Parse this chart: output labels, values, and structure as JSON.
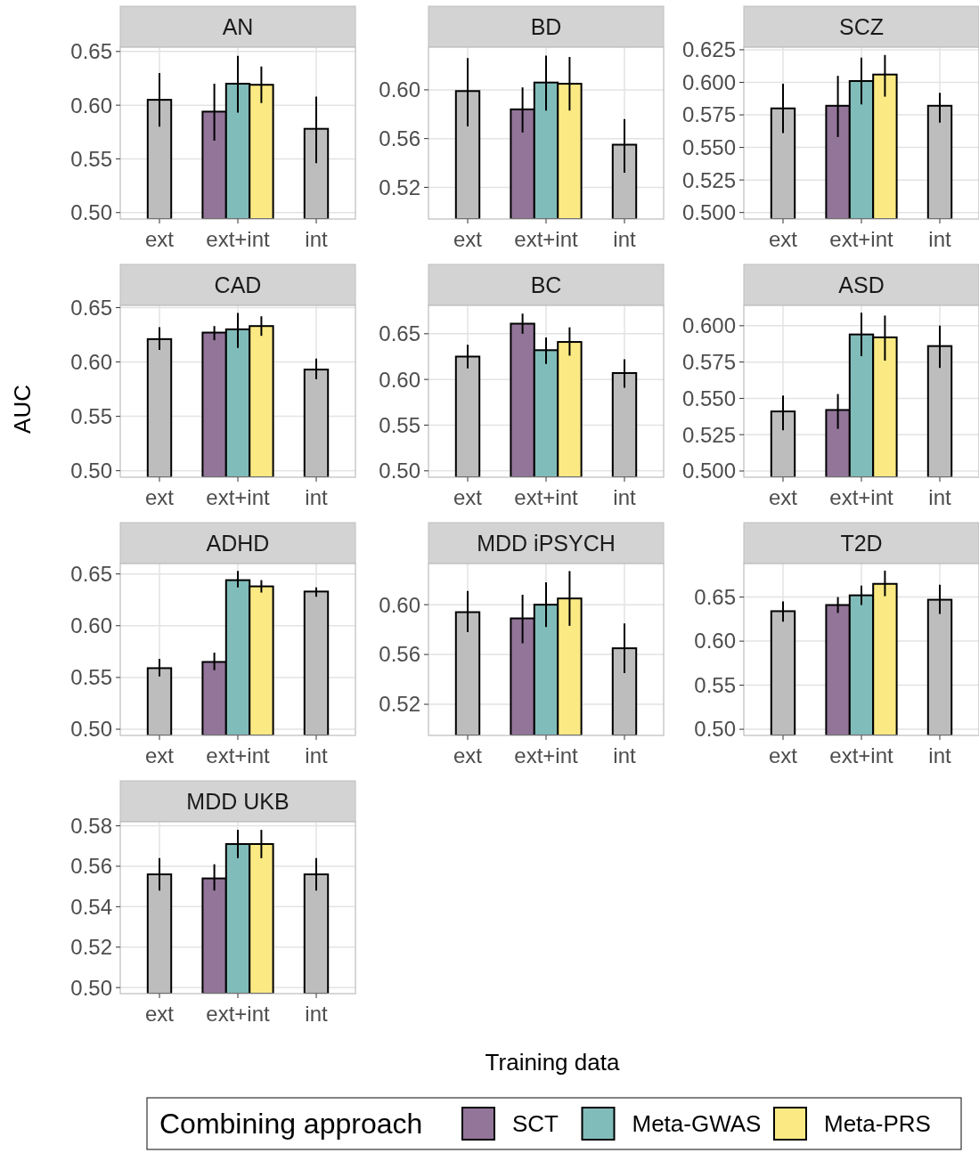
{
  "chart_data": [
    {
      "type": "bar",
      "title": "AN",
      "xlabel": "Training data",
      "legend_title": "Combining approach",
      "legend": "bottom",
      "grid": true,
      "categories": [
        "ext",
        "ext+int",
        "int"
      ],
      "ylim": [
        0.494,
        0.654
      ],
      "yticks": [
        {
          "value": 0.5,
          "label": "0.50"
        },
        0.55,
        {
          "value": 0.6,
          "label": "0.60"
        },
        0.65
      ],
      "series": [
        {
          "color": "#bdbdbd",
          "values": [
            0.605,
            null,
            0.578
          ],
          "errors": [
            [
              0.58,
              0.63
            ],
            null,
            [
              0.546,
              0.608
            ]
          ]
        },
        {
          "name": "SCT",
          "color": "#927599",
          "values": [
            null,
            0.594,
            null
          ],
          "errors": [
            null,
            [
              0.567,
              0.62
            ],
            null
          ]
        },
        {
          "name": "Meta-GWAS",
          "color": "#80bcba",
          "values": [
            null,
            0.62,
            null
          ],
          "errors": [
            null,
            [
              0.593,
              0.646
            ],
            null
          ]
        },
        {
          "name": "Meta-PRS",
          "color": "#fbea84",
          "values": [
            null,
            0.619,
            null
          ],
          "errors": [
            null,
            [
              0.602,
              0.636
            ],
            null
          ]
        }
      ]
    },
    {
      "type": "bar",
      "title": "BD",
      "grid": true,
      "categories": [
        "ext",
        "ext+int",
        "int"
      ],
      "ylim": [
        0.494,
        0.635
      ],
      "yticks": [
        0.52,
        0.56,
        {
          "value": 0.6,
          "label": "0.60"
        }
      ],
      "series": [
        {
          "color": "#bdbdbd",
          "values": [
            0.599,
            null,
            0.555
          ],
          "errors": [
            [
              0.57,
              0.626
            ],
            null,
            [
              0.532,
              0.576
            ]
          ]
        },
        {
          "color": "#927599",
          "values": [
            null,
            0.584,
            null
          ],
          "errors": [
            null,
            [
              0.565,
              0.602
            ],
            null
          ]
        },
        {
          "color": "#80bcba",
          "values": [
            null,
            0.606,
            null
          ],
          "errors": [
            null,
            [
              0.583,
              0.628
            ],
            null
          ]
        },
        {
          "color": "#fbea84",
          "values": [
            null,
            0.605,
            null
          ],
          "errors": [
            null,
            [
              0.583,
              0.627
            ],
            null
          ]
        }
      ]
    },
    {
      "type": "bar",
      "title": "SCZ",
      "grid": true,
      "categories": [
        "ext",
        "ext+int",
        "int"
      ],
      "ylim": [
        0.495,
        0.627
      ],
      "yticks": [
        {
          "value": 0.5,
          "label": "0.500"
        },
        0.525,
        {
          "value": 0.55,
          "label": "0.550"
        },
        0.575,
        {
          "value": 0.6,
          "label": "0.600"
        },
        0.625
      ],
      "series": [
        {
          "color": "#bdbdbd",
          "values": [
            0.58,
            null,
            0.582
          ],
          "errors": [
            [
              0.561,
              0.599
            ],
            null,
            [
              0.569,
              0.592
            ]
          ]
        },
        {
          "color": "#927599",
          "values": [
            null,
            0.582,
            null
          ],
          "errors": [
            null,
            [
              0.558,
              0.605
            ],
            null
          ]
        },
        {
          "color": "#80bcba",
          "values": [
            null,
            0.601,
            null
          ],
          "errors": [
            null,
            [
              0.583,
              0.619
            ],
            null
          ]
        },
        {
          "color": "#fbea84",
          "values": [
            null,
            0.606,
            null
          ],
          "errors": [
            null,
            [
              0.589,
              0.621
            ],
            null
          ]
        }
      ]
    },
    {
      "type": "bar",
      "title": "CAD",
      "ylabel": "AUC",
      "grid": true,
      "categories": [
        "ext",
        "ext+int",
        "int"
      ],
      "ylim": [
        0.494,
        0.652
      ],
      "yticks": [
        {
          "value": 0.5,
          "label": "0.50"
        },
        0.55,
        {
          "value": 0.6,
          "label": "0.60"
        },
        0.65
      ],
      "series": [
        {
          "color": "#bdbdbd",
          "values": [
            0.621,
            null,
            0.593
          ],
          "errors": [
            [
              0.611,
              0.632
            ],
            null,
            [
              0.584,
              0.603
            ]
          ]
        },
        {
          "color": "#927599",
          "values": [
            null,
            0.627,
            null
          ],
          "errors": [
            null,
            [
              0.62,
              0.633
            ],
            null
          ]
        },
        {
          "color": "#80bcba",
          "values": [
            null,
            0.63,
            null
          ],
          "errors": [
            null,
            [
              0.613,
              0.645
            ],
            null
          ]
        },
        {
          "color": "#fbea84",
          "values": [
            null,
            0.633,
            null
          ],
          "errors": [
            null,
            [
              0.624,
              0.642
            ],
            null
          ]
        }
      ]
    },
    {
      "type": "bar",
      "title": "BC",
      "grid": true,
      "categories": [
        "ext",
        "ext+int",
        "int"
      ],
      "ylim": [
        0.493,
        0.681
      ],
      "yticks": [
        {
          "value": 0.5,
          "label": "0.50"
        },
        0.55,
        {
          "value": 0.6,
          "label": "0.60"
        },
        0.65
      ],
      "series": [
        {
          "color": "#bdbdbd",
          "values": [
            0.625,
            null,
            0.607
          ],
          "errors": [
            [
              0.612,
              0.638
            ],
            null,
            [
              0.591,
              0.622
            ]
          ]
        },
        {
          "color": "#927599",
          "values": [
            null,
            0.661,
            null
          ],
          "errors": [
            null,
            [
              0.65,
              0.672
            ],
            null
          ]
        },
        {
          "color": "#80bcba",
          "values": [
            null,
            0.632,
            null
          ],
          "errors": [
            null,
            [
              0.617,
              0.646
            ],
            null
          ]
        },
        {
          "color": "#fbea84",
          "values": [
            null,
            0.641,
            null
          ],
          "errors": [
            null,
            [
              0.626,
              0.657
            ],
            null
          ]
        }
      ]
    },
    {
      "type": "bar",
      "title": "ASD",
      "grid": true,
      "categories": [
        "ext",
        "ext+int",
        "int"
      ],
      "ylim": [
        0.4957,
        0.614
      ],
      "yticks": [
        {
          "value": 0.5,
          "label": "0.500"
        },
        0.525,
        {
          "value": 0.55,
          "label": "0.550"
        },
        0.575,
        {
          "value": 0.6,
          "label": "0.600"
        }
      ],
      "series": [
        {
          "color": "#bdbdbd",
          "values": [
            0.541,
            null,
            0.586
          ],
          "errors": [
            [
              0.528,
              0.552
            ],
            null,
            [
              0.571,
              0.6
            ]
          ]
        },
        {
          "color": "#927599",
          "values": [
            null,
            0.542,
            null
          ],
          "errors": [
            null,
            [
              0.529,
              0.553
            ],
            null
          ]
        },
        {
          "color": "#80bcba",
          "values": [
            null,
            0.594,
            null
          ],
          "errors": [
            null,
            [
              0.579,
              0.609
            ],
            null
          ]
        },
        {
          "color": "#fbea84",
          "values": [
            null,
            0.592,
            null
          ],
          "errors": [
            null,
            [
              0.576,
              0.607
            ],
            null
          ]
        }
      ]
    },
    {
      "type": "bar",
      "title": "ADHD",
      "grid": true,
      "categories": [
        "ext",
        "ext+int",
        "int"
      ],
      "ylim": [
        0.494,
        0.66
      ],
      "yticks": [
        {
          "value": 0.5,
          "label": "0.50"
        },
        0.55,
        {
          "value": 0.6,
          "label": "0.60"
        },
        0.65
      ],
      "series": [
        {
          "color": "#bdbdbd",
          "values": [
            0.559,
            null,
            0.633
          ],
          "errors": [
            [
              0.551,
              0.568
            ],
            null,
            [
              0.628,
              0.637
            ]
          ]
        },
        {
          "color": "#927599",
          "values": [
            null,
            0.565,
            null
          ],
          "errors": [
            null,
            [
              0.557,
              0.574
            ],
            null
          ]
        },
        {
          "color": "#80bcba",
          "values": [
            null,
            0.644,
            null
          ],
          "errors": [
            null,
            [
              0.637,
              0.653
            ],
            null
          ]
        },
        {
          "color": "#fbea84",
          "values": [
            null,
            0.638,
            null
          ],
          "errors": [
            null,
            [
              0.632,
              0.644
            ],
            null
          ]
        }
      ]
    },
    {
      "type": "bar",
      "title": "MDD iPSYCH",
      "grid": true,
      "categories": [
        "ext",
        "ext+int",
        "int"
      ],
      "ylim": [
        0.495,
        0.633
      ],
      "yticks": [
        0.52,
        0.56,
        {
          "value": 0.6,
          "label": "0.60"
        }
      ],
      "series": [
        {
          "color": "#bdbdbd",
          "values": [
            0.594,
            null,
            0.565
          ],
          "errors": [
            [
              0.578,
              0.611
            ],
            null,
            [
              0.545,
              0.585
            ]
          ]
        },
        {
          "color": "#927599",
          "values": [
            null,
            0.589,
            null
          ],
          "errors": [
            null,
            [
              0.569,
              0.608
            ],
            null
          ]
        },
        {
          "color": "#80bcba",
          "values": [
            null,
            0.6,
            null
          ],
          "errors": [
            null,
            [
              0.582,
              0.618
            ],
            null
          ]
        },
        {
          "color": "#fbea84",
          "values": [
            null,
            0.605,
            null
          ],
          "errors": [
            null,
            [
              0.583,
              0.627
            ],
            null
          ]
        }
      ]
    },
    {
      "type": "bar",
      "title": "T2D",
      "grid": true,
      "categories": [
        "ext",
        "ext+int",
        "int"
      ],
      "ylim": [
        0.493,
        0.688
      ],
      "yticks": [
        {
          "value": 0.5,
          "label": "0.50"
        },
        0.55,
        {
          "value": 0.6,
          "label": "0.60"
        },
        0.65
      ],
      "series": [
        {
          "color": "#bdbdbd",
          "values": [
            0.634,
            null,
            0.647
          ],
          "errors": [
            [
              0.622,
              0.645
            ],
            null,
            [
              0.631,
              0.664
            ]
          ]
        },
        {
          "color": "#927599",
          "values": [
            null,
            0.641,
            null
          ],
          "errors": [
            null,
            [
              0.632,
              0.65
            ],
            null
          ]
        },
        {
          "color": "#80bcba",
          "values": [
            null,
            0.652,
            null
          ],
          "errors": [
            null,
            [
              0.641,
              0.663
            ],
            null
          ]
        },
        {
          "color": "#fbea84",
          "values": [
            null,
            0.665,
            null
          ],
          "errors": [
            null,
            [
              0.651,
              0.68
            ],
            null
          ]
        }
      ]
    },
    {
      "type": "bar",
      "title": "MDD UKB",
      "grid": true,
      "categories": [
        "ext",
        "ext+int",
        "int"
      ],
      "ylim": [
        0.497,
        0.582
      ],
      "yticks": [
        {
          "value": 0.5,
          "label": "0.50"
        },
        0.52,
        0.54,
        0.56,
        0.58
      ],
      "series": [
        {
          "color": "#bdbdbd",
          "values": [
            0.556,
            null,
            0.556
          ],
          "errors": [
            [
              0.548,
              0.564
            ],
            null,
            [
              0.548,
              0.564
            ]
          ]
        },
        {
          "color": "#927599",
          "values": [
            null,
            0.554,
            null
          ],
          "errors": [
            null,
            [
              0.548,
              0.561
            ],
            null
          ]
        },
        {
          "color": "#80bcba",
          "values": [
            null,
            0.571,
            null
          ],
          "errors": [
            null,
            [
              0.564,
              0.578
            ],
            null
          ]
        },
        {
          "color": "#fbea84",
          "values": [
            null,
            0.571,
            null
          ],
          "errors": [
            null,
            [
              0.564,
              0.578
            ],
            null
          ]
        }
      ]
    }
  ]
}
